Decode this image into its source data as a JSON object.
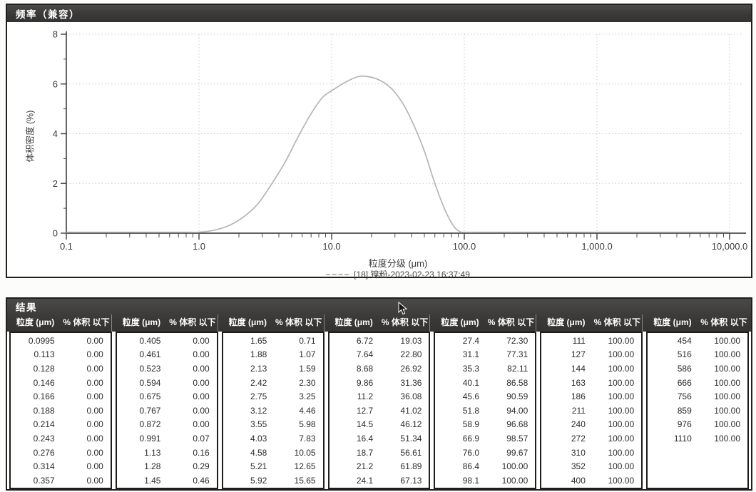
{
  "frequency_panel": {
    "title": "频率（兼容）"
  },
  "chart_data": {
    "type": "line",
    "title": "频率（兼容）",
    "xlabel": "粒度分级 (μm)",
    "ylabel": "体积密度 (%)",
    "x_scale": "log",
    "xlim": [
      0.1,
      10000
    ],
    "ylim": [
      0,
      8
    ],
    "y_ticks": [
      0,
      2,
      4,
      6,
      8
    ],
    "y_minor_ticks": [
      1,
      3,
      5,
      7
    ],
    "x_major_ticks": [
      0.1,
      1,
      10,
      100,
      1000,
      10000
    ],
    "x_tick_labels": [
      "0.1",
      "1.0",
      "10.0",
      "100.0",
      "1,000.0",
      "10,000.0"
    ],
    "grid": true,
    "legend_position": "bottom",
    "series": [
      {
        "name": "[18] 镍粉-2023-02-23 16:37:49",
        "color": "#b5b5b5",
        "line_style": "solid",
        "x": [
          0.1,
          0.5,
          0.8,
          1.0,
          1.3,
          1.7,
          2.2,
          2.8,
          3.5,
          4.4,
          5.5,
          6.9,
          8.5,
          10.5,
          13,
          16,
          19.5,
          24,
          29,
          35,
          42,
          50,
          60,
          72,
          84,
          93,
          100,
          150,
          1000,
          10000
        ],
        "y": [
          0,
          0,
          0.01,
          0.04,
          0.12,
          0.32,
          0.68,
          1.2,
          1.95,
          2.8,
          3.8,
          4.75,
          5.45,
          5.8,
          6.1,
          6.3,
          6.28,
          6.1,
          5.75,
          5.15,
          4.3,
          3.3,
          2.0,
          0.9,
          0.25,
          0.06,
          0,
          0,
          0,
          0
        ]
      }
    ]
  },
  "results": {
    "title": "结果",
    "size_header": "粒度 (μm)",
    "pct_header": "% 体积 以下",
    "groups": [
      [
        [
          "0.0995",
          "0.00"
        ],
        [
          "0.113",
          "0.00"
        ],
        [
          "0.128",
          "0.00"
        ],
        [
          "0.146",
          "0.00"
        ],
        [
          "0.166",
          "0.00"
        ],
        [
          "0.188",
          "0.00"
        ],
        [
          "0.214",
          "0.00"
        ],
        [
          "0.243",
          "0.00"
        ],
        [
          "0.276",
          "0.00"
        ],
        [
          "0.314",
          "0.00"
        ],
        [
          "0.357",
          "0.00"
        ]
      ],
      [
        [
          "0.405",
          "0.00"
        ],
        [
          "0.461",
          "0.00"
        ],
        [
          "0.523",
          "0.00"
        ],
        [
          "0.594",
          "0.00"
        ],
        [
          "0.675",
          "0.00"
        ],
        [
          "0.767",
          "0.00"
        ],
        [
          "0.872",
          "0.00"
        ],
        [
          "0.991",
          "0.07"
        ],
        [
          "1.13",
          "0.16"
        ],
        [
          "1.28",
          "0.29"
        ],
        [
          "1.45",
          "0.46"
        ]
      ],
      [
        [
          "1.65",
          "0.71"
        ],
        [
          "1.88",
          "1.07"
        ],
        [
          "2.13",
          "1.59"
        ],
        [
          "2.42",
          "2.30"
        ],
        [
          "2.75",
          "3.25"
        ],
        [
          "3.12",
          "4.46"
        ],
        [
          "3.55",
          "5.98"
        ],
        [
          "4.03",
          "7.83"
        ],
        [
          "4.58",
          "10.05"
        ],
        [
          "5.21",
          "12.65"
        ],
        [
          "5.92",
          "15.65"
        ]
      ],
      [
        [
          "6.72",
          "19.03"
        ],
        [
          "7.64",
          "22.80"
        ],
        [
          "8.68",
          "26.92"
        ],
        [
          "9.86",
          "31.36"
        ],
        [
          "11.2",
          "36.08"
        ],
        [
          "12.7",
          "41.02"
        ],
        [
          "14.5",
          "46.12"
        ],
        [
          "16.4",
          "51.34"
        ],
        [
          "18.7",
          "56.61"
        ],
        [
          "21.2",
          "61.89"
        ],
        [
          "24.1",
          "67.13"
        ]
      ],
      [
        [
          "27.4",
          "72.30"
        ],
        [
          "31.1",
          "77.31"
        ],
        [
          "35.3",
          "82.11"
        ],
        [
          "40.1",
          "86.58"
        ],
        [
          "45.6",
          "90.59"
        ],
        [
          "51.8",
          "94.00"
        ],
        [
          "58.9",
          "96.68"
        ],
        [
          "66.9",
          "98.57"
        ],
        [
          "76.0",
          "99.67"
        ],
        [
          "86.4",
          "100.00"
        ],
        [
          "98.1",
          "100.00"
        ]
      ],
      [
        [
          "111",
          "100.00"
        ],
        [
          "127",
          "100.00"
        ],
        [
          "144",
          "100.00"
        ],
        [
          "163",
          "100.00"
        ],
        [
          "186",
          "100.00"
        ],
        [
          "211",
          "100.00"
        ],
        [
          "240",
          "100.00"
        ],
        [
          "272",
          "100.00"
        ],
        [
          "310",
          "100.00"
        ],
        [
          "352",
          "100.00"
        ],
        [
          "400",
          "100.00"
        ]
      ],
      [
        [
          "454",
          "100.00"
        ],
        [
          "516",
          "100.00"
        ],
        [
          "586",
          "100.00"
        ],
        [
          "666",
          "100.00"
        ],
        [
          "756",
          "100.00"
        ],
        [
          "859",
          "100.00"
        ],
        [
          "976",
          "100.00"
        ],
        [
          "1110",
          "100.00"
        ]
      ]
    ]
  },
  "colors": {
    "titlebar_bg": "#3a3938",
    "titlebar_text": "#ffffff",
    "curve": "#b5b5b5",
    "grid": "#c9c9c9",
    "axis": "#4a4a48",
    "text": "#2e2e2e",
    "border": "#1f1f1e"
  }
}
